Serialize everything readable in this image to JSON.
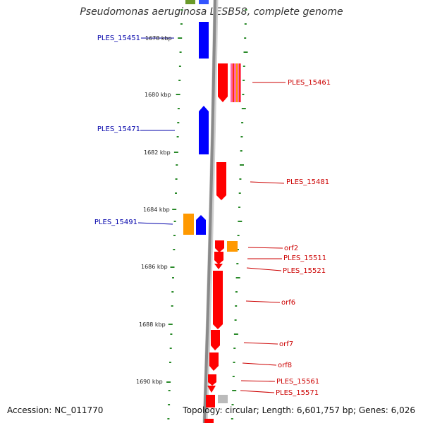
{
  "title": "Pseudomonas aeruginosa LESB58, complete genome",
  "accession": "Accession: NC_011770",
  "topology": "Topology: circular; Length: 6,601,757 bp; Genes: 6,026",
  "colors": {
    "forward_gene": "#ff0000",
    "reverse_gene": "#0000ff",
    "orf": "#ff9900",
    "rrna": "#ff66aa",
    "tick": "#2a8a2a",
    "backbone": "#8a8a8a",
    "other": "#aaaaaa"
  },
  "ruler": {
    "unit": "kbp",
    "labels": [
      {
        "text": "1678 kbp"
      },
      {
        "text": "1680 kbp"
      },
      {
        "text": "1682 kbp"
      },
      {
        "text": "1684 kbp"
      },
      {
        "text": "1686 kbp"
      },
      {
        "text": "1688 kbp"
      },
      {
        "text": "1690 kbp"
      }
    ]
  },
  "genes_reverse": [
    {
      "name": "PLES_15451"
    },
    {
      "name": "PLES_15471"
    },
    {
      "name": "PLES_15491"
    }
  ],
  "genes_forward": [
    {
      "name": "PLES_15461"
    },
    {
      "name": "PLES_15481"
    },
    {
      "name": "orf2"
    },
    {
      "name": "PLES_15511"
    },
    {
      "name": "PLES_15521"
    },
    {
      "name": "orf6"
    },
    {
      "name": "orf7"
    },
    {
      "name": "orf8"
    },
    {
      "name": "PLES_15561"
    },
    {
      "name": "PLES_15571"
    }
  ]
}
